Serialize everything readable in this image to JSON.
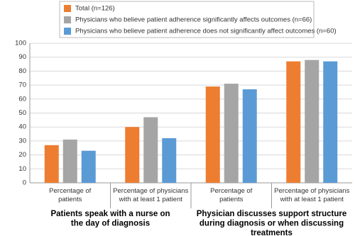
{
  "chart_data": {
    "type": "bar",
    "categories": [
      "Percentage of\npatients",
      "Percentage of physicians\nwith at least 1 patient",
      "Percentage of\npatients",
      "Percentage of physicians\nwith at least 1 patient"
    ],
    "group_labels": [
      "Patients speak with a nurse on\nthe day of diagnosis",
      "Physician discusses support structure\nduring diagnosis or when discussing\ntreatments"
    ],
    "series": [
      {
        "name": "Total (n=126)",
        "color": "#ed7d31",
        "values": [
          27,
          40,
          69,
          87
        ]
      },
      {
        "name": "Physicians who believe patient adherence significantly affects outcomes (n=66)",
        "color": "#a5a5a5",
        "values": [
          31,
          47,
          71,
          88
        ]
      },
      {
        "name": "Physicians who believe patient adherence does not significantly affect outcomes (n=60)",
        "color": "#5b9bd5",
        "values": [
          23,
          32,
          67,
          87
        ]
      }
    ],
    "ylim": [
      0,
      100
    ],
    "yticks": [
      0,
      10,
      20,
      30,
      40,
      50,
      60,
      70,
      80,
      90,
      100
    ],
    "grid": true
  }
}
